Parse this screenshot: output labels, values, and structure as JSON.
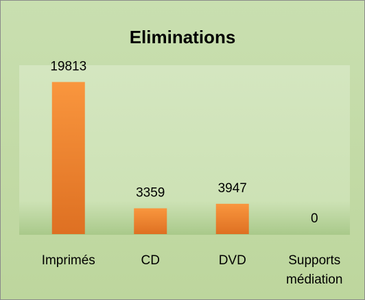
{
  "chart_data": {
    "type": "bar",
    "title": "Eliminations",
    "categories": [
      "Imprimés",
      "CD",
      "DVD",
      "Supports médiation"
    ],
    "values": [
      19813,
      3359,
      3947,
      0
    ],
    "color": "#f08a34",
    "ylim": [
      0,
      22000
    ]
  }
}
